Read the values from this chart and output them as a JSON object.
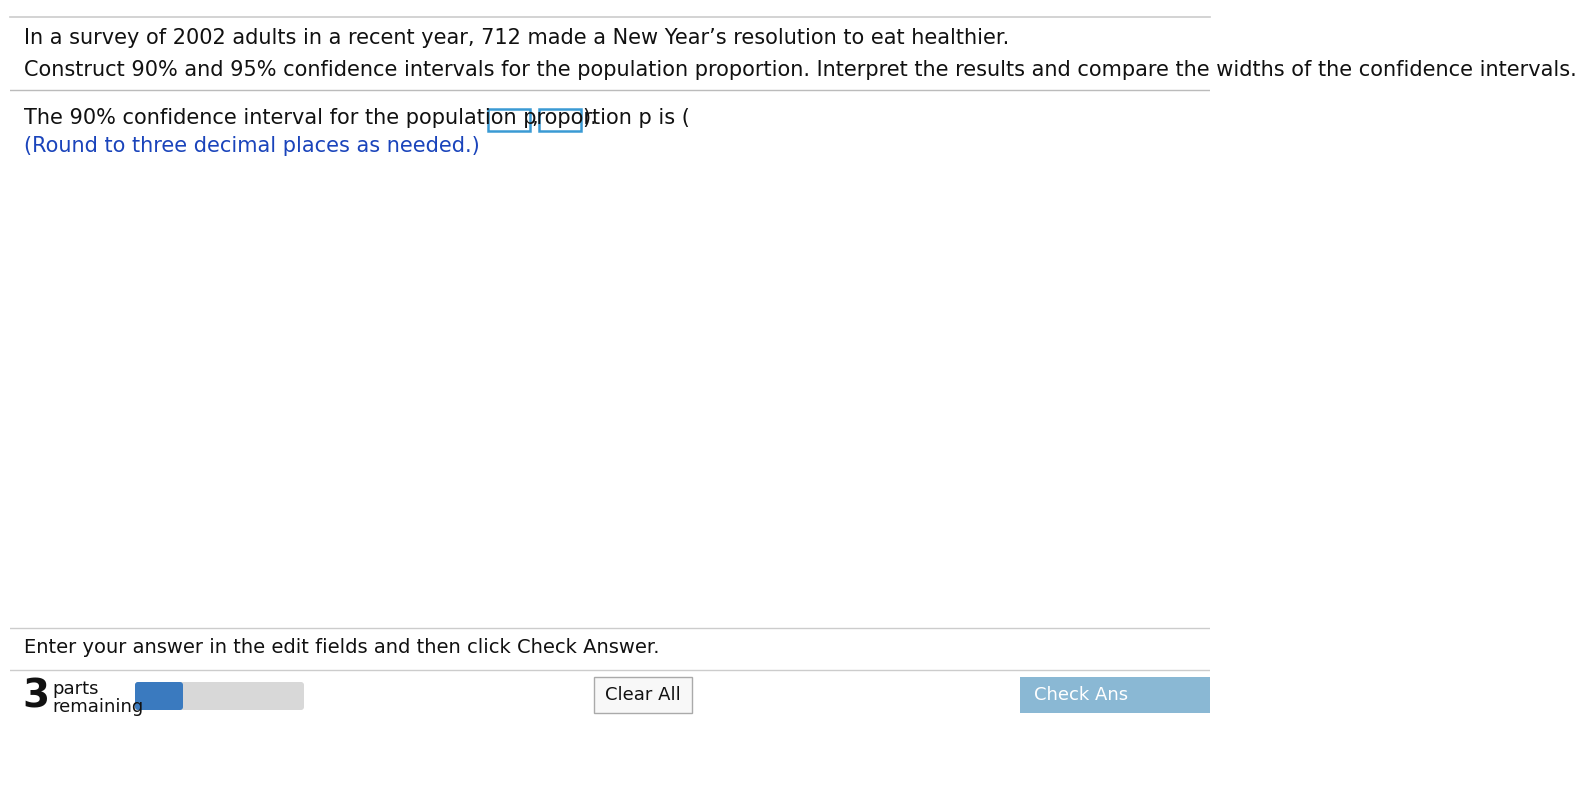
{
  "bg_color": "#ffffff",
  "top_line_color": "#cccccc",
  "separator_color": "#bbbbbb",
  "bottom_separator_color": "#cccccc",
  "line1": "In a survey of 2002 adults in a recent year, 712 made a New Year’s resolution to eat healthier.",
  "line2": "Construct 90% and 95% confidence intervals for the population proportion. Interpret the results and compare the widths of the confidence intervals.",
  "question_text": "The 90% confidence interval for the population proportion p is (",
  "question_suffix": ").",
  "question_comma": ",",
  "question_blue": "(Round to three decimal places as needed.)",
  "footer_text": "Enter your answer in the edit fields and then click Check Answer.",
  "parts_number": "3",
  "parts_label": "parts",
  "remaining_label": "remaining",
  "clear_button_text": "Clear All",
  "check_button_text": "Check Ans",
  "progress_bar_fill": "#3a7abf",
  "progress_bar_bg": "#d8d8d8",
  "check_button_color": "#8ab8d4",
  "clear_button_border": "#aaaaaa",
  "clear_button_bg": "#f8f8f8",
  "input_box_border": "#3a9ad4",
  "text_color_black": "#111111",
  "text_color_blue": "#1a44bb",
  "font_size_main": 15,
  "font_size_footer": 14,
  "font_size_parts_num": 28,
  "font_size_parts_label": 13,
  "font_size_button": 13
}
